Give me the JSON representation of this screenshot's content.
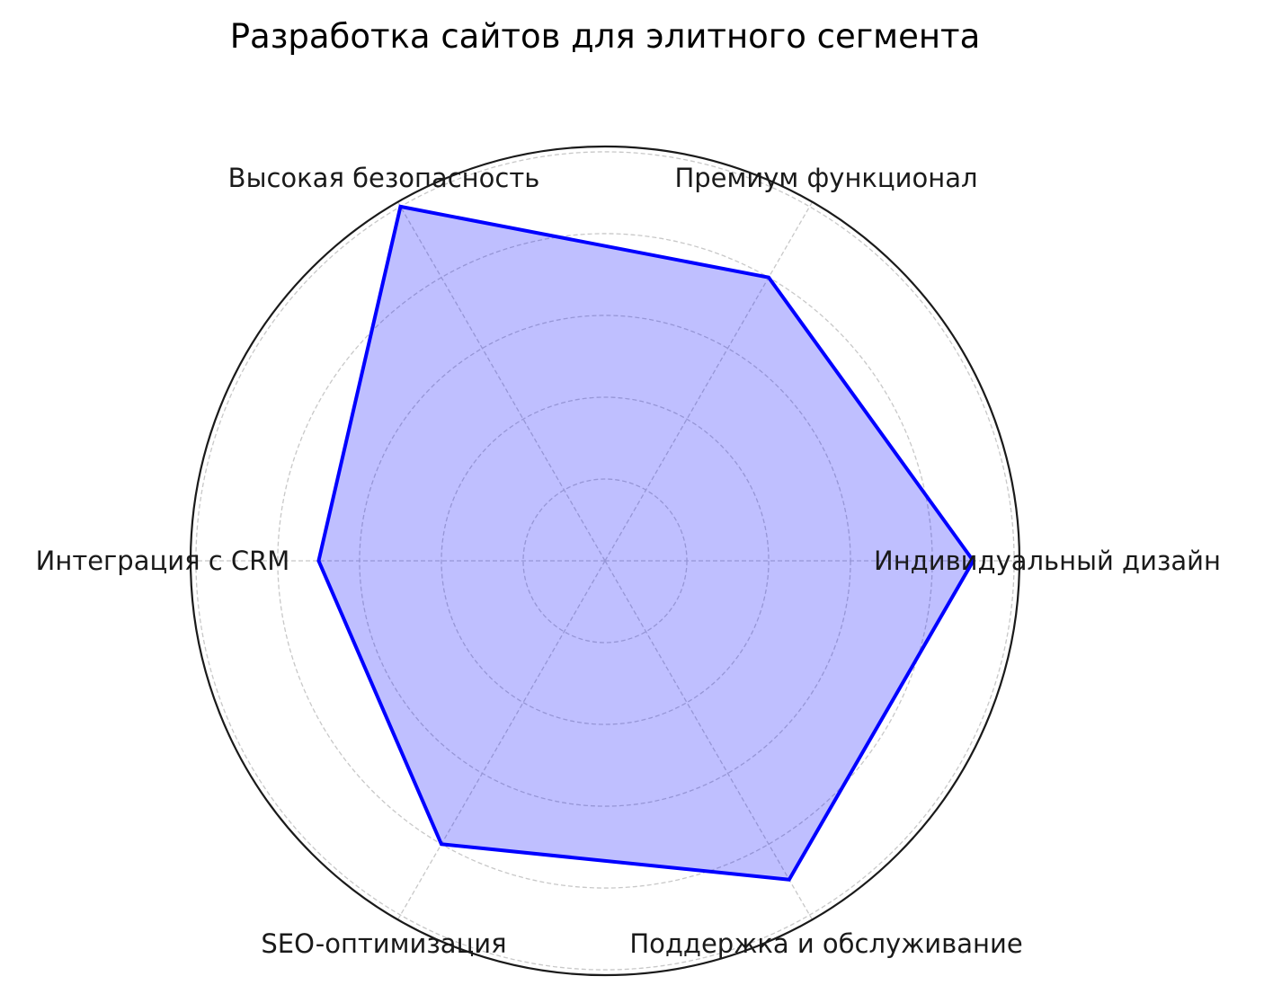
{
  "chart_data": {
    "type": "radar",
    "title": "Разработка сайтов для элитного сегмента",
    "categories": [
      "Индивидуальный дизайн",
      "Премиум функционал",
      "Высокая безопасность",
      "Интеграция с CRM",
      "SEO-оптимизация",
      "Поддержка и обслуживание"
    ],
    "series": [
      {
        "values": [
          9,
          8,
          10,
          7,
          8,
          9
        ]
      }
    ],
    "rlim": [
      0,
      10.13
    ],
    "rgrid": [
      2,
      4,
      6,
      8,
      10
    ],
    "grid": true,
    "radial_tick_labels_visible": false,
    "colors": {
      "line": "#0000ff",
      "fill": "#0000ff",
      "fill_alpha": 0.25,
      "grid": "#c8c8c8",
      "frame": "#1a1a1a"
    }
  }
}
